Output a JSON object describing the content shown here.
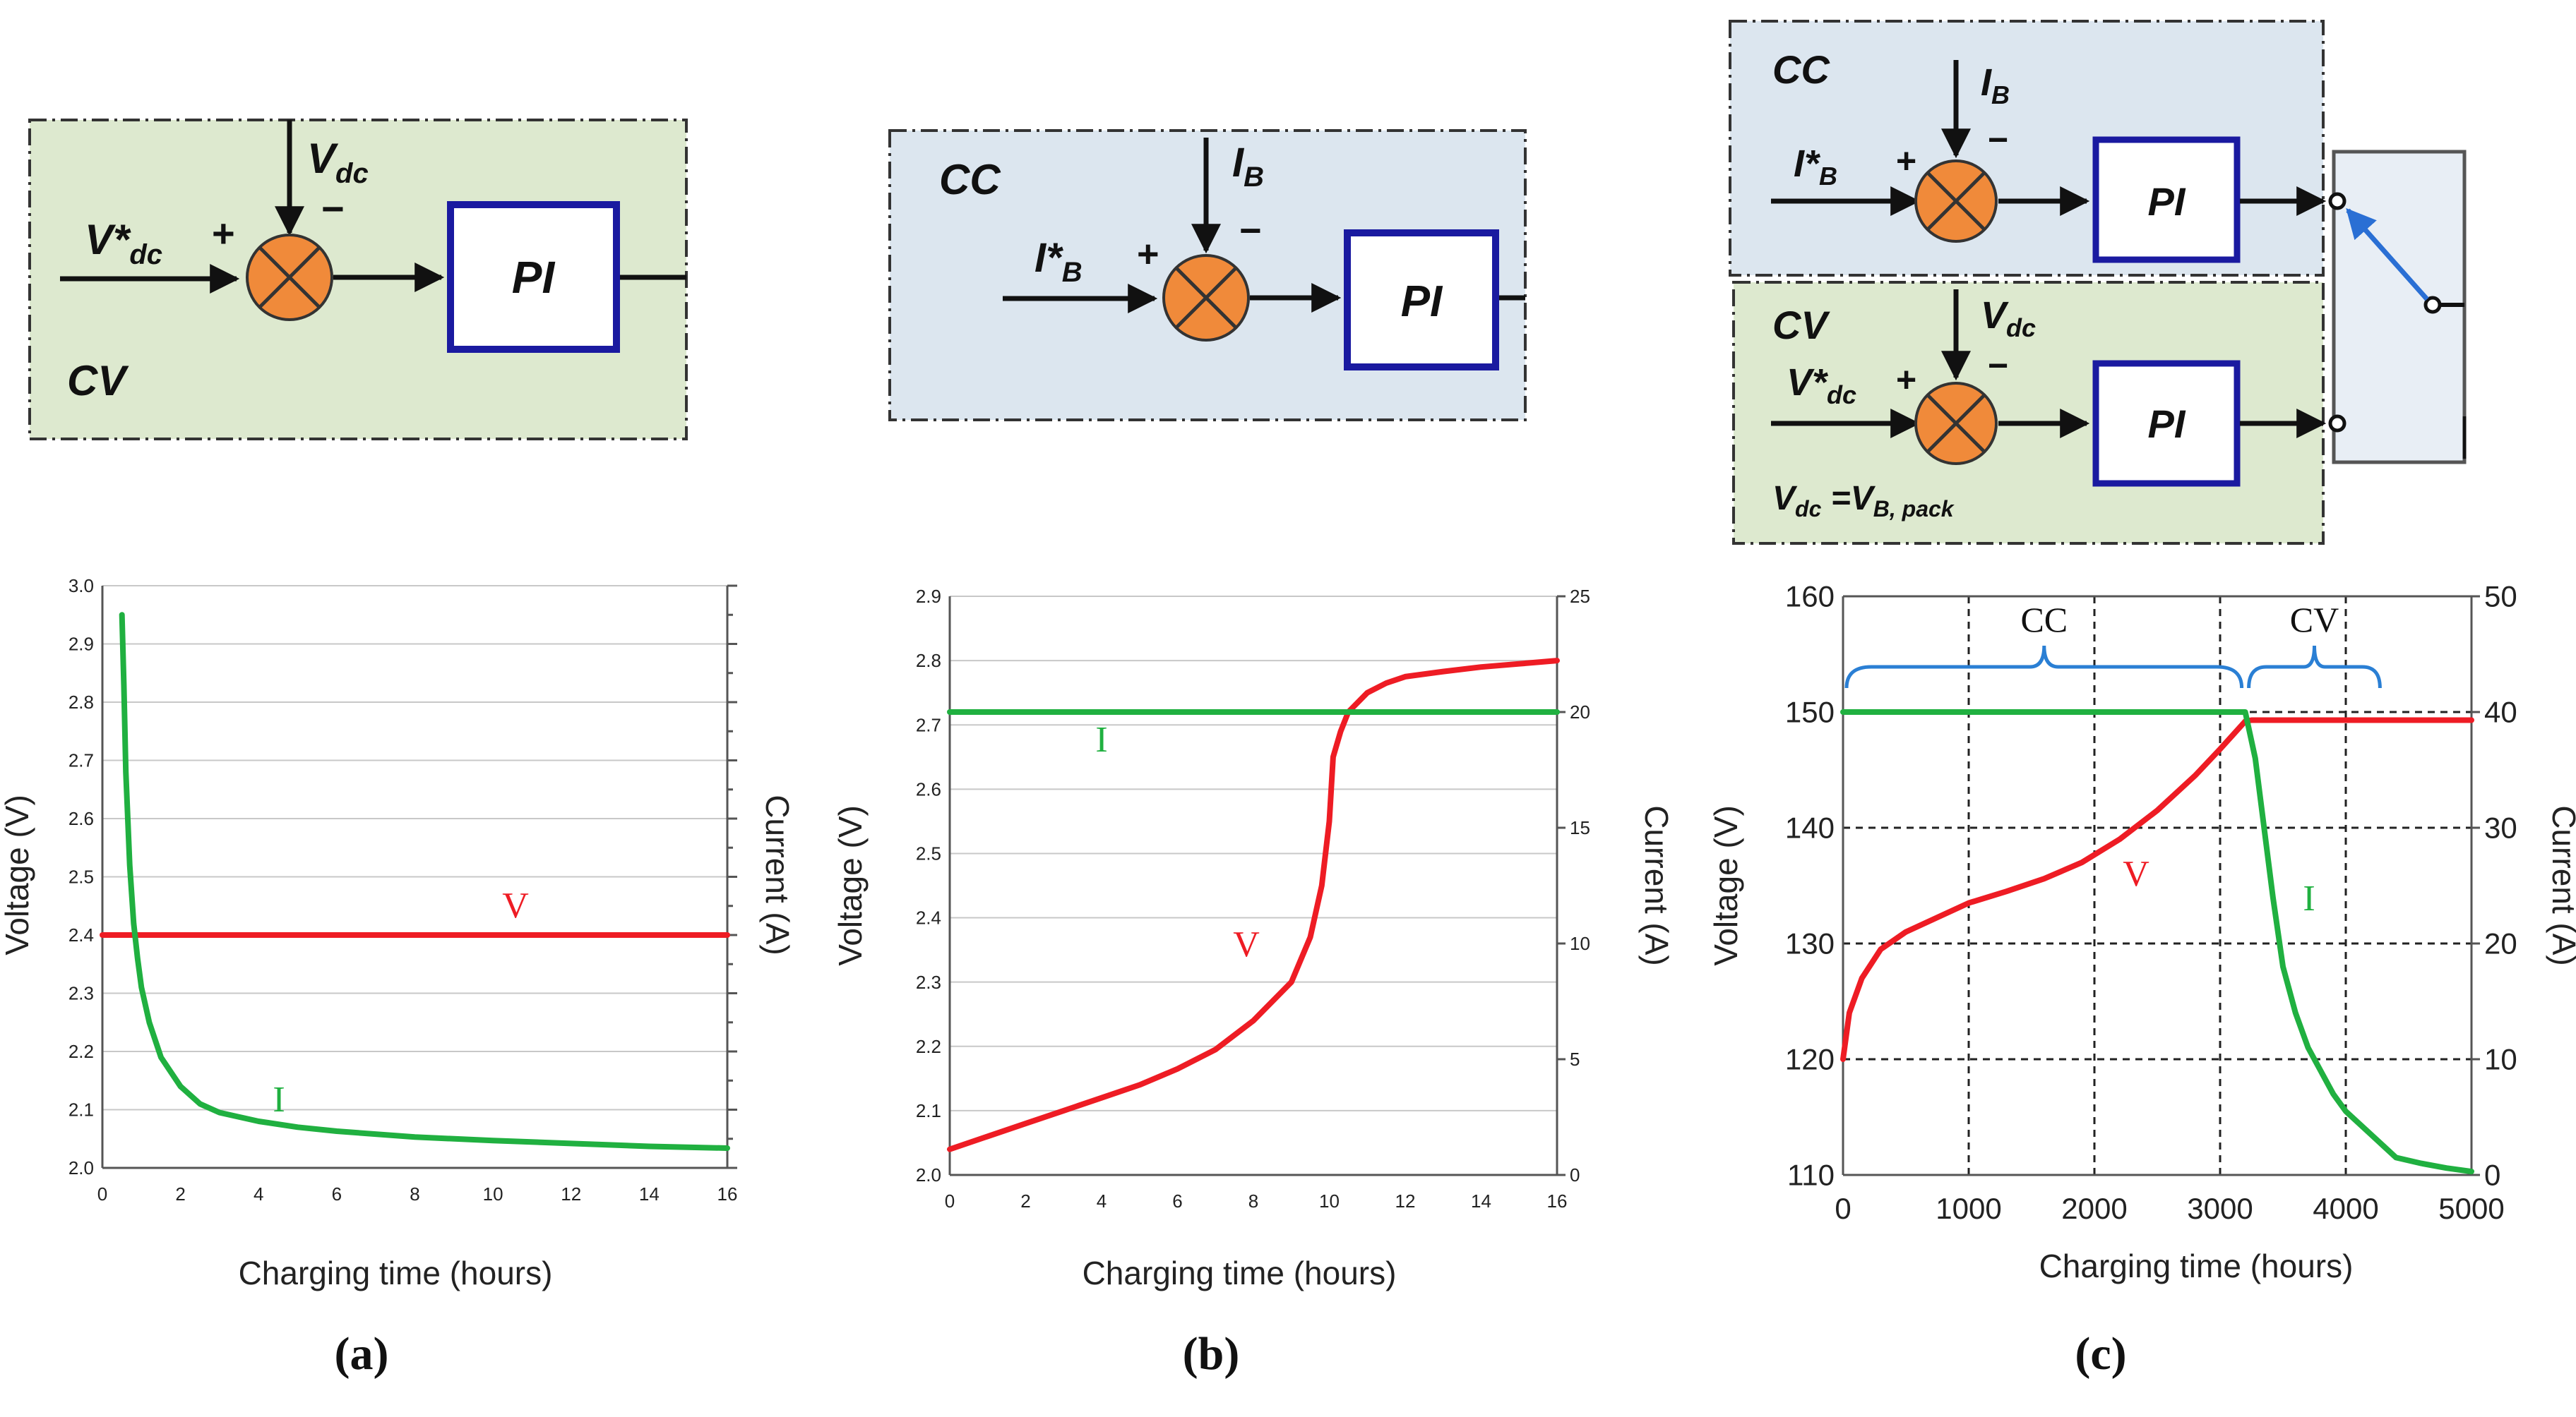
{
  "colors": {
    "voltage": "#ee1c24",
    "current": "#20b040",
    "cv_bg": "#dde9cf",
    "cc_bg": "#dce6ef",
    "pi_border": "#1a1aa0",
    "summer": "#f08a3a",
    "bracket": "#2a7fd4",
    "grid": "#c8c8c8"
  },
  "blocks": {
    "a": {
      "label": "CV",
      "ref_main": "V*",
      "ref_sub": "dc",
      "fb_main": "V",
      "fb_sub": "dc",
      "plus": "+",
      "minus": "−",
      "controller": "PI"
    },
    "b": {
      "label": "CC",
      "ref_main": "I*",
      "ref_sub": "B",
      "fb_main": "I",
      "fb_sub": "B",
      "plus": "+",
      "minus": "−",
      "controller": "PI"
    },
    "c": {
      "cc": {
        "label": "CC",
        "ref_main": "I*",
        "ref_sub": "B",
        "fb_main": "I",
        "fb_sub": "B",
        "plus": "+",
        "minus": "−",
        "controller": "PI"
      },
      "cv": {
        "label": "CV",
        "ref_main": "V*",
        "ref_sub": "dc",
        "fb_main": "V",
        "fb_sub": "dc",
        "plus": "+",
        "minus": "−",
        "controller": "PI",
        "eq_lhs_main": "V",
        "eq_lhs_sub": "dc",
        "eq_rhs_main": " =V",
        "eq_rhs_sub": "B, pack"
      }
    }
  },
  "chart_data": [
    {
      "id": "a",
      "type": "line",
      "title": "",
      "xlabel": "Charging time (hours)",
      "ylabel": "Voltage (V)",
      "y2label": "Current (A)",
      "xlim": [
        0,
        16
      ],
      "ylim": [
        2.0,
        3.0
      ],
      "xticks": [
        "0",
        "2",
        "4",
        "6",
        "8",
        "10",
        "12",
        "14",
        "16"
      ],
      "yticks": [
        "2.0",
        "2.1",
        "2.2",
        "2.3",
        "2.4",
        "2.5",
        "2.6",
        "2.7",
        "2.8",
        "2.9",
        "3.0"
      ],
      "grid": true,
      "series": [
        {
          "name": "V",
          "axis": "left",
          "x": [
            0,
            16
          ],
          "y": [
            2.4,
            2.4
          ]
        },
        {
          "name": "I",
          "axis": "left",
          "x": [
            0.5,
            0.55,
            0.6,
            0.7,
            0.8,
            0.9,
            1.0,
            1.2,
            1.5,
            2.0,
            2.5,
            3,
            4,
            5,
            6,
            8,
            10,
            12,
            14,
            16
          ],
          "y": [
            2.95,
            2.83,
            2.68,
            2.52,
            2.42,
            2.36,
            2.31,
            2.25,
            2.19,
            2.14,
            2.11,
            2.095,
            2.08,
            2.07,
            2.063,
            2.053,
            2.047,
            2.042,
            2.037,
            2.034
          ]
        }
      ],
      "annotations": [
        "V",
        "I"
      ],
      "caption": "(a)"
    },
    {
      "id": "b",
      "type": "line",
      "title": "",
      "xlabel": "Charging time (hours)",
      "ylabel": "Voltage (V)",
      "y2label": "Current (A)",
      "xlim": [
        0,
        16
      ],
      "ylim": [
        2.0,
        2.9
      ],
      "y2lim": [
        0,
        25
      ],
      "xticks": [
        "0",
        "2",
        "4",
        "6",
        "8",
        "10",
        "12",
        "14",
        "16"
      ],
      "yticks": [
        "2.0",
        "2.1",
        "2.2",
        "2.3",
        "2.4",
        "2.5",
        "2.6",
        "2.7",
        "2.8",
        "2.9"
      ],
      "y2ticks": [
        "0",
        "5",
        "10",
        "15",
        "20",
        "25"
      ],
      "grid": true,
      "series": [
        {
          "name": "V",
          "axis": "left",
          "x": [
            0,
            1,
            2,
            3,
            4,
            5,
            6,
            7,
            8,
            9,
            9.5,
            9.8,
            10.0,
            10.1,
            10.3,
            10.5,
            11,
            11.5,
            12,
            13,
            14,
            15,
            16
          ],
          "y": [
            2.04,
            2.06,
            2.08,
            2.1,
            2.12,
            2.14,
            2.165,
            2.195,
            2.24,
            2.3,
            2.37,
            2.45,
            2.55,
            2.65,
            2.69,
            2.72,
            2.75,
            2.765,
            2.775,
            2.783,
            2.79,
            2.795,
            2.8
          ]
        },
        {
          "name": "I",
          "axis": "right",
          "x": [
            0,
            16
          ],
          "y": [
            20,
            20
          ]
        }
      ],
      "annotations": [
        "I",
        "V"
      ],
      "caption": "(b)"
    },
    {
      "id": "c",
      "type": "line",
      "title": "",
      "xlabel": "Charging time (hours)",
      "ylabel": "Voltage (V)",
      "y2label": "Current (A)",
      "xlim": [
        0,
        5000
      ],
      "ylim": [
        110,
        160
      ],
      "y2lim": [
        0,
        50
      ],
      "xticks": [
        "0",
        "1000",
        "2000",
        "3000",
        "4000",
        "5000"
      ],
      "yticks": [
        "110",
        "120",
        "130",
        "140",
        "150",
        "160"
      ],
      "y2ticks": [
        "0",
        "10",
        "20",
        "30",
        "40",
        "50"
      ],
      "grid": true,
      "series": [
        {
          "name": "V",
          "axis": "left",
          "x": [
            0,
            50,
            150,
            300,
            500,
            800,
            1000,
            1300,
            1600,
            1900,
            2200,
            2500,
            2800,
            3000,
            3100,
            3200,
            3250,
            3300,
            5000
          ],
          "y": [
            120,
            124,
            127,
            129.5,
            131,
            132.5,
            133.5,
            134.5,
            135.6,
            137,
            139,
            141.5,
            144.5,
            146.8,
            148,
            149.2,
            149.3,
            149.3,
            149.3
          ]
        },
        {
          "name": "I",
          "axis": "right",
          "x": [
            0,
            3200,
            3280,
            3350,
            3420,
            3500,
            3600,
            3700,
            3800,
            3900,
            4000,
            4100,
            4200,
            4300,
            4400,
            4600,
            4800,
            5000
          ],
          "y": [
            40,
            40,
            36,
            30,
            24,
            18,
            14,
            11,
            9,
            7,
            5.5,
            4.5,
            3.5,
            2.5,
            1.5,
            1.0,
            0.6,
            0.3
          ]
        }
      ],
      "phases": [
        "CC",
        "CV"
      ],
      "annotations": [
        "V",
        "I"
      ],
      "caption": "(c)"
    }
  ]
}
